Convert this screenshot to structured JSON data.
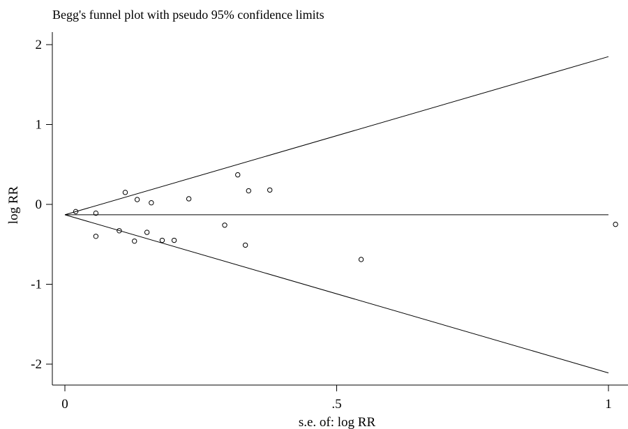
{
  "chart_data": {
    "type": "scatter",
    "title": "Begg's funnel plot with pseudo 95% confidence limits",
    "xlabel": "s.e. of: log RR",
    "ylabel": "log RR",
    "xlim": [
      0,
      1.03
    ],
    "ylim": [
      -2.2,
      2.15
    ],
    "xticks": [
      {
        "value": 0,
        "label": "0"
      },
      {
        "value": 0.5,
        "label": ".5"
      },
      {
        "value": 1,
        "label": "1"
      }
    ],
    "yticks": [
      {
        "value": 2,
        "label": "2"
      },
      {
        "value": 1,
        "label": "1"
      },
      {
        "value": 0,
        "label": "0"
      },
      {
        "value": -1,
        "label": "-1"
      },
      {
        "value": -2,
        "label": "-2"
      }
    ],
    "pooled_estimate": -0.13,
    "confidence_lines": {
      "x_end": 1.0,
      "upper_end": 1.85,
      "lower_end": -2.11
    },
    "points": [
      {
        "x": 0.02,
        "y": -0.09
      },
      {
        "x": 0.057,
        "y": -0.11
      },
      {
        "x": 0.057,
        "y": -0.4
      },
      {
        "x": 0.1,
        "y": -0.33
      },
      {
        "x": 0.111,
        "y": 0.15
      },
      {
        "x": 0.128,
        "y": -0.46
      },
      {
        "x": 0.133,
        "y": 0.06
      },
      {
        "x": 0.151,
        "y": -0.35
      },
      {
        "x": 0.159,
        "y": 0.02
      },
      {
        "x": 0.179,
        "y": -0.45
      },
      {
        "x": 0.201,
        "y": -0.45
      },
      {
        "x": 0.228,
        "y": 0.07
      },
      {
        "x": 0.294,
        "y": -0.26
      },
      {
        "x": 0.318,
        "y": 0.37
      },
      {
        "x": 0.332,
        "y": -0.51
      },
      {
        "x": 0.338,
        "y": 0.17
      },
      {
        "x": 0.377,
        "y": 0.18
      },
      {
        "x": 0.545,
        "y": -0.69
      },
      {
        "x": 1.013,
        "y": -0.25
      }
    ]
  }
}
